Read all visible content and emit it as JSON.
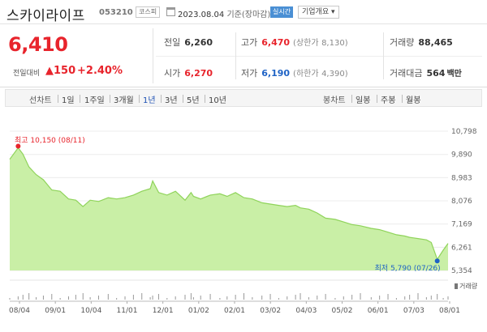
{
  "header": {
    "name": "스카이라이프",
    "code": "053210",
    "market": "코스피",
    "date_value": "2023.08.04",
    "date_suffix": "기준(장마감)",
    "live_label": "실시간",
    "info_label": "기업개요 ▾"
  },
  "price": {
    "current": "6,410",
    "change_label": "전일대비",
    "change": "▲150",
    "change_pct": "+2.40%"
  },
  "stats": {
    "prev_label": "전일",
    "prev": "6,260",
    "high_label": "고가",
    "high": "6,470",
    "upper_label": "(상한가",
    "upper": "8,130)",
    "volume_label": "거래량",
    "volume": "88,465",
    "open_label": "시가",
    "open": "6,270",
    "low_label": "저가",
    "low": "6,190",
    "lower_label": "(하한가",
    "lower": "4,390)",
    "amount_label": "거래대금",
    "amount": "564",
    "amount_unit": "백만"
  },
  "period_tabs": {
    "line_title": "선차트",
    "line": [
      "1일",
      "1주일",
      "3개월",
      "1년",
      "3년",
      "5년",
      "10년"
    ],
    "active": "1년",
    "candle_title": "봉차트",
    "candle": [
      "일봉",
      "주봉",
      "월봉"
    ]
  },
  "colors": {
    "up": "#e8242c",
    "down": "#1f63c5",
    "area_fill": "#c9efa6",
    "area_line": "#8fd35a",
    "active_tab": "#1a4fb3"
  },
  "chart_data": {
    "type": "area",
    "y_ticks": [
      "10,798",
      "9,890",
      "8,983",
      "8,076",
      "7,169",
      "6,261",
      "5,354"
    ],
    "ylim": [
      5354,
      10798
    ],
    "x_tick_labels": [
      "08/04",
      "09/01",
      "10/04",
      "11/01",
      "12/01",
      "01/02",
      "02/01",
      "03/02",
      "04/03",
      "05/02",
      "06/01",
      "07/03",
      "08/01"
    ],
    "max_label": "최고 10,150 (08/11)",
    "min_label": "최저 5,790 (07/26)",
    "volume_legend": "거래량",
    "series": [
      {
        "x": [
          "2022-08-04",
          "2022-08-11",
          "2022-08-15",
          "2022-08-20",
          "2022-08-26",
          "2022-09-01",
          "2022-09-08",
          "2022-09-15",
          "2022-09-22",
          "2022-09-28",
          "2022-10-04",
          "2022-10-10",
          "2022-10-17",
          "2022-10-25",
          "2022-11-01",
          "2022-11-08",
          "2022-11-15",
          "2022-11-22",
          "2022-11-29",
          "2022-12-01",
          "2022-12-06",
          "2022-12-13",
          "2022-12-20",
          "2022-12-28",
          "2023-01-02",
          "2023-01-04",
          "2023-01-10",
          "2023-01-18",
          "2023-01-26",
          "2023-02-01",
          "2023-02-08",
          "2023-02-15",
          "2023-02-22",
          "2023-03-02",
          "2023-03-09",
          "2023-03-16",
          "2023-03-23",
          "2023-03-30",
          "2023-04-03",
          "2023-04-10",
          "2023-04-17",
          "2023-04-24",
          "2023-05-02",
          "2023-05-09",
          "2023-05-16",
          "2023-05-23",
          "2023-06-01",
          "2023-06-08",
          "2023-06-15",
          "2023-06-22",
          "2023-06-29",
          "2023-07-03",
          "2023-07-10",
          "2023-07-17",
          "2023-07-21",
          "2023-07-26",
          "2023-07-31",
          "2023-08-04"
        ],
        "values": [
          9700,
          10150,
          9900,
          9400,
          9100,
          8900,
          8500,
          8450,
          8150,
          8100,
          7850,
          8100,
          8050,
          8200,
          8150,
          8200,
          8300,
          8450,
          8550,
          8850,
          8400,
          8300,
          8450,
          8100,
          8400,
          8250,
          8150,
          8300,
          8350,
          8250,
          8400,
          8200,
          8150,
          8000,
          7950,
          7900,
          7850,
          7900,
          7800,
          7750,
          7600,
          7400,
          7350,
          7250,
          7150,
          7100,
          7000,
          6950,
          6850,
          6750,
          6700,
          6650,
          6600,
          6550,
          6450,
          5790,
          6150,
          6410
        ]
      }
    ],
    "grid": true
  }
}
